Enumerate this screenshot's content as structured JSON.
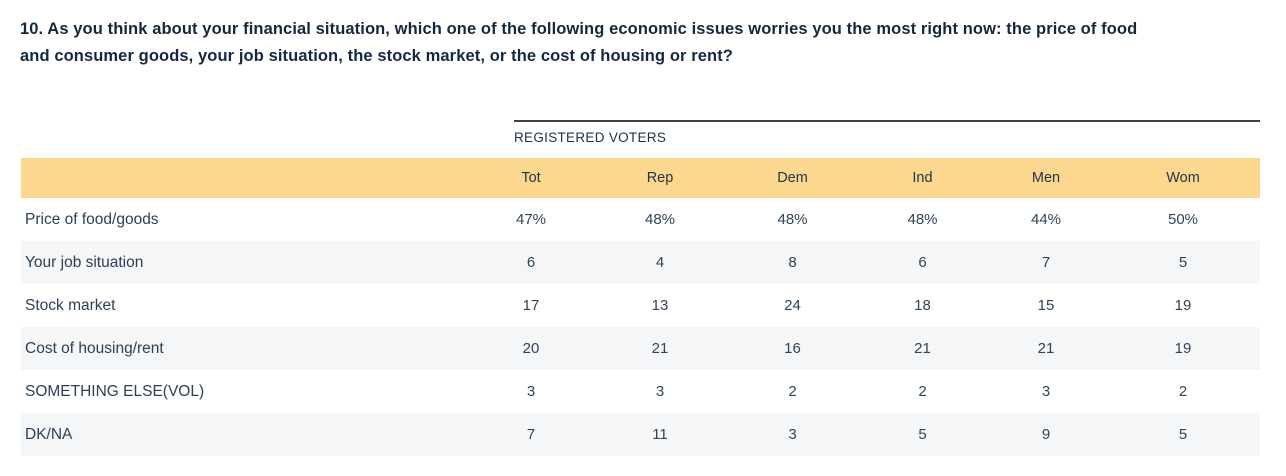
{
  "question": {
    "lines": [
      "10. As you think about your financial situation, which one of the following economic issues worries you the most right now: the price of food",
      "and consumer goods, your job situation, the stock market, or the cost of housing or rent?"
    ]
  },
  "table": {
    "group_header": "REGISTERED VOTERS",
    "columns": [
      "Tot",
      "Rep",
      "Dem",
      "Ind",
      "Men",
      "Wom"
    ],
    "rows": [
      {
        "label": "Price of food/goods",
        "values": [
          "47%",
          "48%",
          "48%",
          "48%",
          "44%",
          "50%"
        ]
      },
      {
        "label": "Your job situation",
        "values": [
          "6",
          "4",
          "8",
          "6",
          "7",
          "5"
        ]
      },
      {
        "label": "Stock market",
        "values": [
          "17",
          "13",
          "24",
          "18",
          "15",
          "19"
        ]
      },
      {
        "label": "Cost of housing/rent",
        "values": [
          "20",
          "21",
          "16",
          "21",
          "21",
          "19"
        ]
      },
      {
        "label": "SOMETHING ELSE(VOL)",
        "values": [
          "3",
          "3",
          "2",
          "2",
          "3",
          "2"
        ]
      },
      {
        "label": "DK/NA",
        "values": [
          "7",
          "11",
          "3",
          "5",
          "9",
          "5"
        ]
      }
    ]
  },
  "colors": {
    "header_band": "#fbd88e",
    "row_stripe": "#f4f6f8",
    "question_text": "#14283e",
    "table_text": "#2f4459",
    "rule": "#39424d"
  }
}
